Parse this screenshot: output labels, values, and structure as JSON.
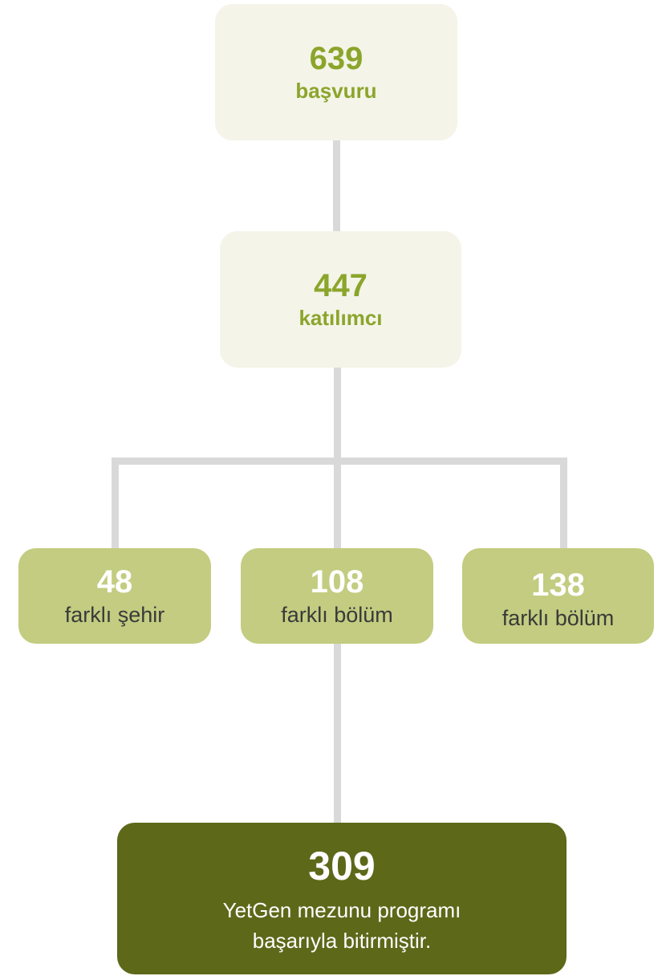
{
  "nodes": [
    {
      "number": "639",
      "label": "başvuru"
    },
    {
      "number": "447",
      "label": "katılımcı"
    },
    {
      "number": "48",
      "label": "farklı şehir"
    },
    {
      "number": "108",
      "label": "farklı bölüm"
    },
    {
      "number": "138",
      "label": "farklı bölüm"
    },
    {
      "number": "309",
      "label": [
        "YetGen mezunu programı",
        "başarıyla bitirmiştir."
      ]
    }
  ]
}
